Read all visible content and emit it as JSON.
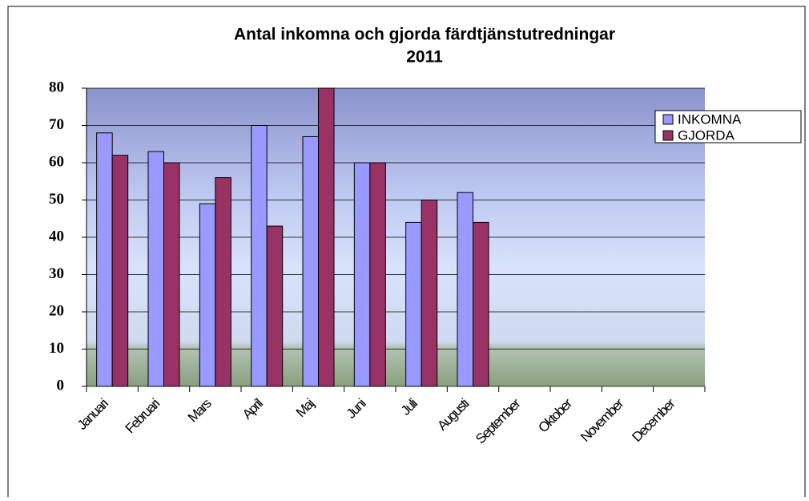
{
  "chart_data": {
    "type": "bar",
    "title": [
      "Antal inkomna och gjorda färdtjänstutredningar",
      "2011"
    ],
    "categories": [
      "Januari",
      "Februari",
      "Mars",
      "April",
      "Maj",
      "Juni",
      "Juli",
      "Augusti",
      "September",
      "Oktober",
      "November",
      "December"
    ],
    "series": [
      {
        "name": "INKOMNA",
        "color": "#9999ff",
        "values": [
          68,
          63,
          49,
          70,
          67,
          60,
          44,
          52,
          null,
          null,
          null,
          null
        ]
      },
      {
        "name": "GJORDA",
        "color": "#993366",
        "values": [
          62,
          60,
          56,
          43,
          80,
          60,
          50,
          44,
          null,
          null,
          null,
          null
        ]
      }
    ],
    "ylim": [
      0,
      80
    ],
    "yticks": [
      0,
      10,
      20,
      30,
      40,
      50,
      60,
      70,
      80
    ],
    "grid": true,
    "legend": "top-right"
  }
}
